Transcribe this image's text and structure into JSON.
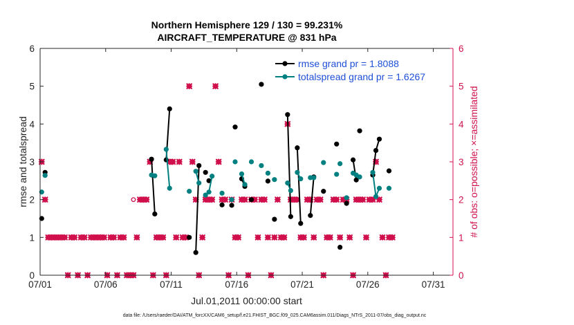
{
  "chart_data": {
    "type": "scatter",
    "title_lines": [
      "Northern Hemisphere 129 / 130 = 99.231%",
      "AIRCRAFT_TEMPERATURE @ 831 hPa"
    ],
    "xlabel": "Jul.01,2011 00:00:00 start",
    "ylabel": "rmse and totalspread",
    "ylabel_right": "# of obs: o=possible; ×=assimilated",
    "footnote": "data file: /Users/raeder/DAI/ATM_forcXX/CAM6_setup/f.e21.FHIST_BGC.f09_025.CAM6assim.011/Diags_NTrS_2011-07/obs_diag_output.nc",
    "xlim": [
      0,
      31.5
    ],
    "ylim": [
      0,
      6
    ],
    "ylim_right": [
      0,
      6
    ],
    "x_ticks": [
      0,
      5,
      10,
      15,
      20,
      25,
      30
    ],
    "x_tick_labels": [
      "07/01",
      "07/06",
      "07/11",
      "07/16",
      "07/21",
      "07/26",
      "07/31"
    ],
    "y_ticks": [
      0,
      1,
      2,
      3,
      4,
      5,
      6
    ],
    "y_tick_labels": [
      "0",
      "1",
      "2",
      "3",
      "4",
      "5",
      "6"
    ],
    "y_right_ticks": [
      0,
      1,
      2,
      3,
      4,
      5,
      6
    ],
    "y_right_tick_labels": [
      "0",
      "1",
      "2",
      "3",
      "4",
      "5",
      "6"
    ],
    "legend_position": "top-right",
    "colors": {
      "rmse": "#000000",
      "spread": "#008080",
      "obs": "#d0104c"
    },
    "series": [
      {
        "name": "rmse grand pr = 1.8088",
        "segments": [
          [
            [
              0.12,
              1.5
            ]
          ],
          [
            [
              0.38,
              2.72
            ]
          ],
          [
            [
              8.5,
              3.07
            ],
            [
              8.75,
              1.62
            ]
          ],
          [
            [
              9.62,
              3.05
            ],
            [
              9.88,
              4.4
            ]
          ],
          [
            [
              11.38,
              1.0
            ]
          ],
          [
            [
              11.88,
              0.6
            ],
            [
              12.12,
              2.9
            ]
          ],
          [
            [
              12.62,
              2.72
            ]
          ],
          [
            [
              12.88,
              2.5
            ]
          ],
          [
            [
              13.88,
              1.86
            ]
          ],
          [
            [
              14.62,
              1.85
            ]
          ],
          [
            [
              14.88,
              3.92
            ]
          ],
          [
            [
              15.38,
              2.55
            ],
            [
              15.62,
              2.35
            ]
          ],
          [
            [
              16.12,
              2.0
            ]
          ],
          [
            [
              16.88,
              5.05
            ]
          ],
          [
            [
              17.38,
              2.49
            ]
          ],
          [
            [
              17.88,
              1.48
            ]
          ],
          [
            [
              18.88,
              4.25
            ],
            [
              19.12,
              1.55
            ]
          ],
          [
            [
              19.62,
              3.37
            ],
            [
              19.88,
              1.37
            ]
          ],
          [
            [
              20.62,
              1.58
            ],
            [
              20.88,
              2.6
            ]
          ],
          [
            [
              21.62,
              2.22
            ]
          ],
          [
            [
              22.62,
              3.47
            ]
          ],
          [
            [
              22.88,
              0.74
            ]
          ],
          [
            [
              23.38,
              1.9
            ]
          ],
          [
            [
              23.88,
              3.05
            ],
            [
              24.12,
              2.52
            ]
          ],
          [
            [
              24.38,
              3.82
            ]
          ],
          [
            [
              25.38,
              2.65
            ],
            [
              25.62,
              3.3
            ],
            [
              25.88,
              3.6
            ]
          ],
          [
            [
              26.62,
              2.76
            ]
          ]
        ]
      },
      {
        "name": "totalspread grand pr = 1.6267",
        "segments": [
          [
            [
              0.12,
              2.2
            ]
          ],
          [
            [
              0.38,
              2.64
            ]
          ],
          [
            [
              8.5,
              2.65
            ],
            [
              8.75,
              2.63
            ]
          ],
          [
            [
              9.62,
              3.33
            ],
            [
              9.88,
              2.3
            ]
          ],
          [
            [
              11.38,
              2.22
            ]
          ],
          [
            [
              11.88,
              2.75
            ],
            [
              12.12,
              2.44
            ]
          ],
          [
            [
              12.62,
              2.12
            ],
            [
              12.88,
              2.2
            ],
            [
              13.12,
              2.62
            ]
          ],
          [
            [
              13.88,
              2.17
            ]
          ],
          [
            [
              14.62,
              2.0
            ]
          ],
          [
            [
              14.88,
              3.0
            ]
          ],
          [
            [
              15.38,
              2.68
            ],
            [
              15.62,
              2.4
            ]
          ],
          [
            [
              16.12,
              3.0
            ]
          ],
          [
            [
              16.88,
              2.9
            ]
          ],
          [
            [
              17.38,
              2.7
            ]
          ],
          [
            [
              17.88,
              2.53
            ]
          ],
          [
            [
              18.88,
              2.44
            ],
            [
              19.12,
              2.24
            ]
          ],
          [
            [
              19.62,
              2.72
            ],
            [
              19.88,
              2.55
            ]
          ],
          [
            [
              20.62,
              2.58
            ],
            [
              20.88,
              2.58
            ]
          ],
          [
            [
              21.62,
              2.98
            ]
          ],
          [
            [
              22.62,
              2.67
            ]
          ],
          [
            [
              22.88,
              2.95
            ]
          ],
          [
            [
              23.38,
              2.05
            ]
          ],
          [
            [
              23.88,
              2.7
            ],
            [
              24.12,
              2.65
            ]
          ],
          [
            [
              24.38,
              2.6
            ]
          ],
          [
            [
              25.38,
              2.72
            ],
            [
              25.62,
              2.08
            ],
            [
              25.88,
              2.3
            ]
          ],
          [
            [
              26.62,
              2.3
            ]
          ]
        ]
      }
    ],
    "obs_assimilated": {
      "x": [
        0.12,
        0.38,
        0.62,
        0.88,
        1.12,
        1.38,
        1.62,
        1.88,
        2.12,
        2.38,
        2.62,
        2.88,
        3.12,
        3.38,
        3.62,
        3.88,
        4.12,
        4.38,
        4.62,
        4.88,
        5.12,
        5.38,
        5.62,
        5.88,
        6.12,
        6.38,
        6.62,
        6.88,
        7.12,
        7.38,
        7.62,
        7.88,
        8.12,
        8.38,
        8.62,
        8.88,
        9.12,
        9.38,
        9.62,
        9.88,
        10.12,
        10.38,
        10.62,
        10.88,
        11.12,
        11.38,
        11.62,
        11.88,
        12.12,
        12.38,
        12.62,
        12.88,
        13.12,
        13.38,
        13.62,
        13.88,
        14.12,
        14.38,
        14.62,
        14.88,
        15.12,
        15.38,
        15.62,
        15.88,
        16.12,
        16.38,
        16.62,
        16.88,
        17.12,
        17.38,
        17.62,
        17.88,
        18.12,
        18.38,
        18.62,
        18.88,
        19.12,
        19.38,
        19.62,
        19.88,
        20.12,
        20.38,
        20.62,
        20.88,
        21.12,
        21.38,
        21.62,
        21.88,
        22.12,
        22.38,
        22.62,
        22.88,
        23.12,
        23.38,
        23.62,
        23.88,
        24.12,
        24.38,
        24.62,
        24.88,
        25.12,
        25.38,
        25.62,
        25.88,
        26.12,
        26.38,
        26.62,
        26.88
      ],
      "y": [
        3,
        2,
        1,
        1,
        1,
        1,
        1,
        1,
        0,
        1,
        1,
        0,
        1,
        1,
        0,
        1,
        1,
        1,
        1,
        1,
        0,
        1,
        1,
        0,
        1,
        1,
        0,
        0,
        0,
        1,
        2,
        2,
        2,
        3,
        0,
        1,
        1,
        1,
        0,
        3,
        3,
        1,
        3,
        1,
        1,
        5,
        3,
        2,
        0,
        1,
        2,
        2,
        2,
        5,
        3,
        2,
        2,
        0,
        2,
        1,
        1,
        2,
        2,
        0,
        2,
        2,
        1,
        2,
        2,
        1,
        0,
        1,
        2,
        1,
        1,
        4,
        2,
        2,
        2,
        1,
        1,
        2,
        2,
        1,
        2,
        2,
        0,
        1,
        1,
        2,
        2,
        1,
        2,
        2,
        1,
        0,
        2,
        2,
        2,
        1,
        2,
        2,
        3,
        2,
        1,
        0,
        1,
        1
      ]
    },
    "obs_possible": {
      "x": [
        7.12
      ],
      "y": [
        2
      ]
    }
  }
}
